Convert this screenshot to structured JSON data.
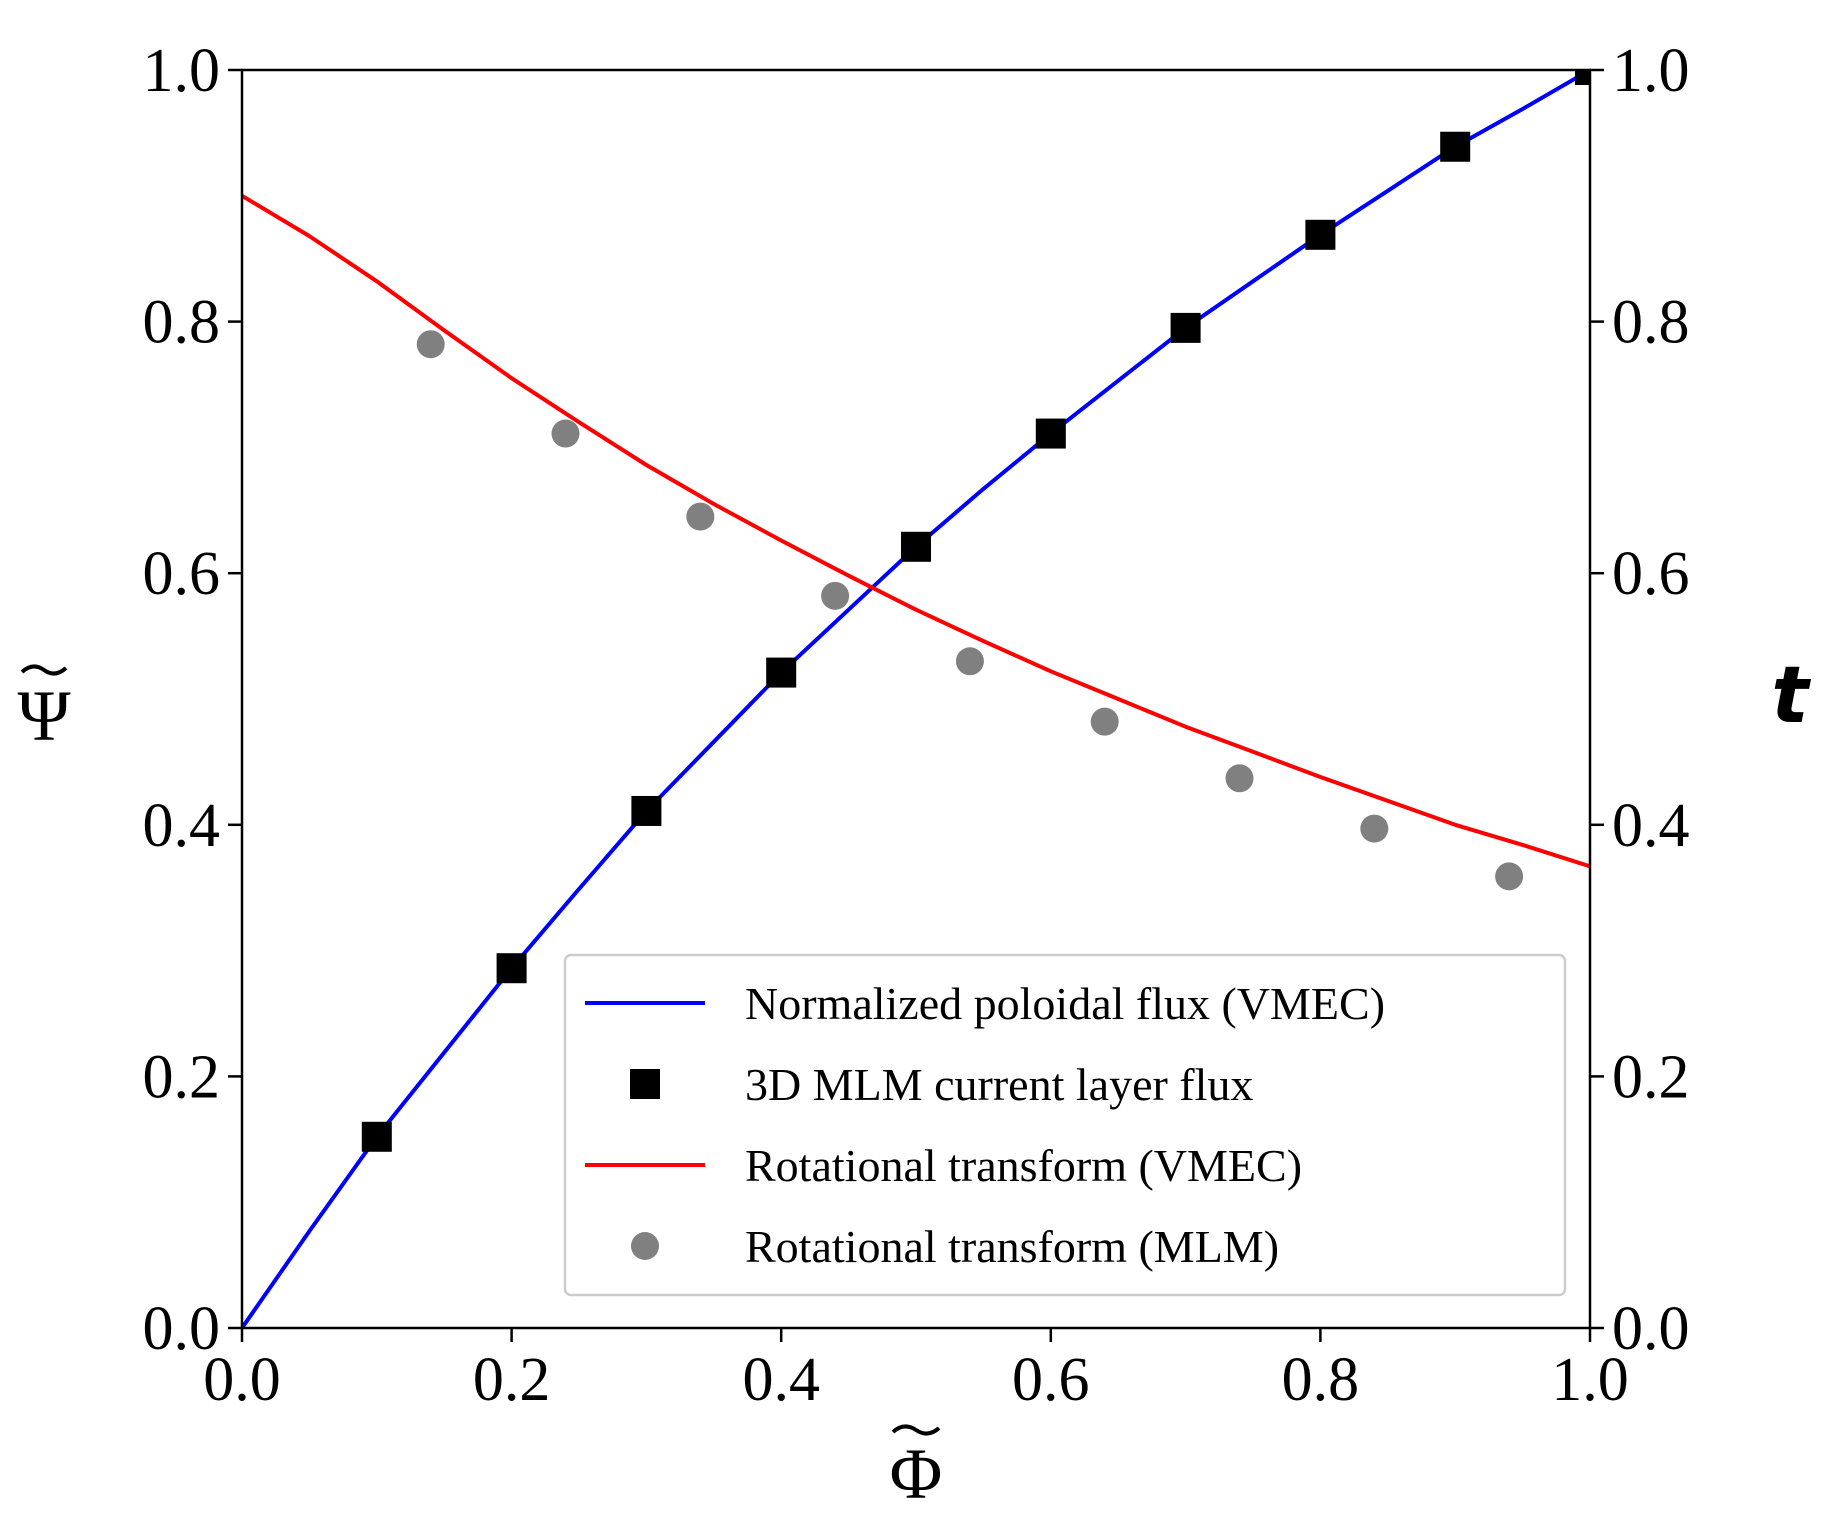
{
  "chart_data": {
    "type": "line",
    "xlabel": "Φ",
    "ylabel_left": "Ψ",
    "ylabel_right": "t",
    "xlim": [
      0.0,
      1.0
    ],
    "ylim_left": [
      0.0,
      1.0
    ],
    "ylim_right": [
      0.0,
      1.0
    ],
    "xticks": [
      "0.0",
      "0.2",
      "0.4",
      "0.6",
      "0.8",
      "1.0"
    ],
    "yticks_left": [
      "0.0",
      "0.2",
      "0.4",
      "0.6",
      "0.8",
      "1.0"
    ],
    "yticks_right": [
      "0.0",
      "0.2",
      "0.4",
      "0.6",
      "0.8",
      "1.0"
    ],
    "legend_position": "lower-right",
    "series": [
      {
        "name": "Normalized poloidal flux (VMEC)",
        "kind": "line",
        "color": "#0000ff",
        "x": [
          0.0,
          0.05,
          0.1,
          0.15,
          0.2,
          0.25,
          0.3,
          0.35,
          0.4,
          0.45,
          0.5,
          0.55,
          0.6,
          0.65,
          0.7,
          0.75,
          0.8,
          0.85,
          0.9,
          0.95,
          1.0
        ],
        "y": [
          0.0,
          0.077,
          0.152,
          0.219,
          0.286,
          0.349,
          0.411,
          0.466,
          0.521,
          0.571,
          0.621,
          0.667,
          0.711,
          0.753,
          0.795,
          0.832,
          0.869,
          0.904,
          0.939,
          0.969,
          1.0
        ]
      },
      {
        "name": "3D MLM current layer flux",
        "kind": "square-markers",
        "color": "#000000",
        "x": [
          0.1,
          0.2,
          0.3,
          0.4,
          0.5,
          0.6,
          0.7,
          0.8,
          0.9,
          1.0
        ],
        "y": [
          0.152,
          0.286,
          0.411,
          0.521,
          0.621,
          0.711,
          0.795,
          0.869,
          0.939,
          1.0
        ]
      },
      {
        "name": "Rotational transform (VMEC)",
        "kind": "line",
        "color": "#ff0000",
        "x": [
          0.0,
          0.05,
          0.1,
          0.15,
          0.2,
          0.25,
          0.3,
          0.35,
          0.4,
          0.45,
          0.5,
          0.55,
          0.6,
          0.65,
          0.7,
          0.75,
          0.8,
          0.85,
          0.9,
          0.95,
          1.0
        ],
        "y": [
          0.9,
          0.868,
          0.832,
          0.793,
          0.755,
          0.72,
          0.686,
          0.655,
          0.626,
          0.598,
          0.571,
          0.546,
          0.522,
          0.5,
          0.478,
          0.458,
          0.438,
          0.419,
          0.4,
          0.384,
          0.367
        ]
      },
      {
        "name": "Rotational transform (MLM)",
        "kind": "circle-markers",
        "color": "#808080",
        "x": [
          0.14,
          0.24,
          0.34,
          0.44,
          0.54,
          0.64,
          0.74,
          0.84,
          0.94
        ],
        "y": [
          0.782,
          0.711,
          0.645,
          0.582,
          0.53,
          0.482,
          0.437,
          0.397,
          0.359
        ]
      }
    ]
  }
}
